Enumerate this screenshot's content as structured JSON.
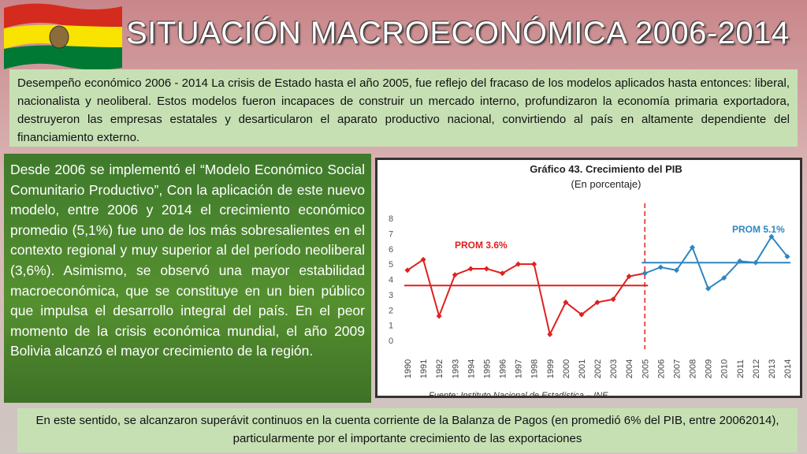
{
  "header": {
    "title": "SITUACIÓN MACROECONÓMICA 2006-2014"
  },
  "intro": "Desempeño económico 2006 - 2014 La crisis de Estado hasta el año 2005, fue reflejo del fracaso de los modelos aplicados hasta entonces: liberal, nacionalista y neoliberal. Estos modelos fueron incapaces de construir un mercado interno, profundizaron la economía primaria exportadora, destruyeron las empresas estatales y desarticularon el aparato productivo nacional, convirtiendo al país en altamente dependiente del financiamiento externo.",
  "body": "Desde 2006 se implementó el “Modelo Económico Social Comunitario Productivo”, Con la aplicación de este nuevo modelo, entre 2006 y 2014 el crecimiento económico promedio (5,1%) fue uno de los más sobresalientes en el contexto regional y muy superior al del período neoliberal (3,6%). Asimismo, se observó una mayor estabilidad macroeconómica, que se constituye en un bien público que impulsa el desarrollo integral del país. En el peor momento de la crisis económica mundial, el año 2009 Bolivia alcanzó el mayor crecimiento de la región.",
  "footer": "En este sentido, se alcanzaron superávit continuos en la cuenta corriente de la Balanza de Pagos (en promedió 6% del PIB, entre 20062014), particularmente por el importante crecimiento de las exportaciones",
  "chart_data": {
    "type": "line",
    "title": "Gráfico 43. Crecimiento del PIB",
    "subtitle": "(En porcentaje)",
    "source": "Fuente: Instituto Nacional de Estadística – INE",
    "categories": [
      "1990",
      "1991",
      "1992",
      "1993",
      "1994",
      "1995",
      "1996",
      "1997",
      "1998",
      "1999",
      "2000",
      "2001",
      "2002",
      "2003",
      "2004",
      "2005",
      "2006",
      "2007",
      "2008",
      "2009",
      "2010",
      "2011",
      "2012",
      "2013",
      "2014"
    ],
    "series": [
      {
        "color": "#e02020",
        "values": [
          4.6,
          5.3,
          1.6,
          4.3,
          4.7,
          4.7,
          4.4,
          5.0,
          5.0,
          0.4,
          2.5,
          1.7,
          2.5,
          2.7,
          4.2,
          4.4,
          null,
          null,
          null,
          null,
          null,
          null,
          null,
          null,
          null
        ]
      },
      {
        "color": "#2e86c1",
        "values": [
          null,
          null,
          null,
          null,
          null,
          null,
          null,
          null,
          null,
          null,
          null,
          null,
          null,
          null,
          null,
          4.4,
          4.8,
          4.6,
          6.1,
          3.4,
          4.1,
          5.2,
          5.1,
          6.8,
          5.5
        ]
      }
    ],
    "averages": [
      {
        "label": "PROM 3.6%",
        "value": 3.6,
        "color": "#e02020",
        "from": "1990",
        "to": "2005"
      },
      {
        "label": "PROM 5.1%",
        "value": 5.1,
        "color": "#2e86c1",
        "from": "2005",
        "to": "2014"
      }
    ],
    "divider": "2005",
    "ylim": [
      0,
      8
    ],
    "yticks": [
      0,
      1,
      2,
      3,
      4,
      5,
      6,
      7,
      8
    ],
    "grid": false
  }
}
